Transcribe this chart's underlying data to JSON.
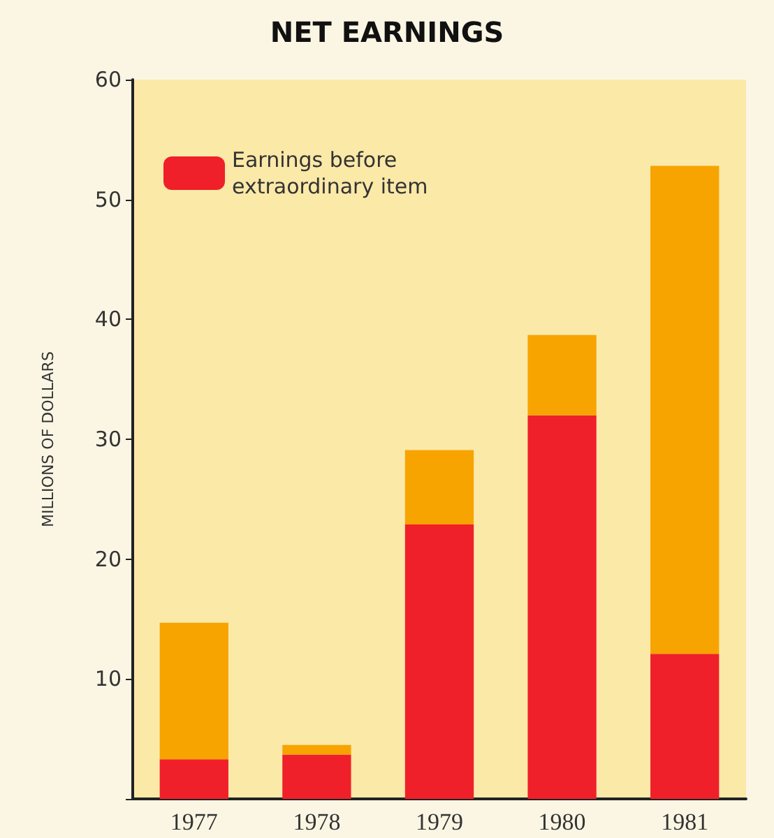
{
  "chart_data": {
    "type": "bar",
    "title": "NET EARNINGS",
    "ylabel": "MILLIONS OF DOLLARS",
    "categories": [
      "1977",
      "1978",
      "1979",
      "1980",
      "1981"
    ],
    "stacked": true,
    "series": [
      {
        "name": "Earnings before extraordinary item",
        "color": "#f0202a",
        "values": [
          3.3,
          3.7,
          22.9,
          32.0,
          12.1
        ]
      },
      {
        "color": "#f7a400",
        "values": [
          11.4,
          0.8,
          6.2,
          6.7,
          40.7
        ]
      }
    ],
    "ylim": [
      0,
      60
    ],
    "yticks": [
      {
        "value": 0,
        "label": null
      },
      10,
      20,
      30,
      40,
      50,
      60
    ],
    "grid": false,
    "legend": "top left"
  }
}
